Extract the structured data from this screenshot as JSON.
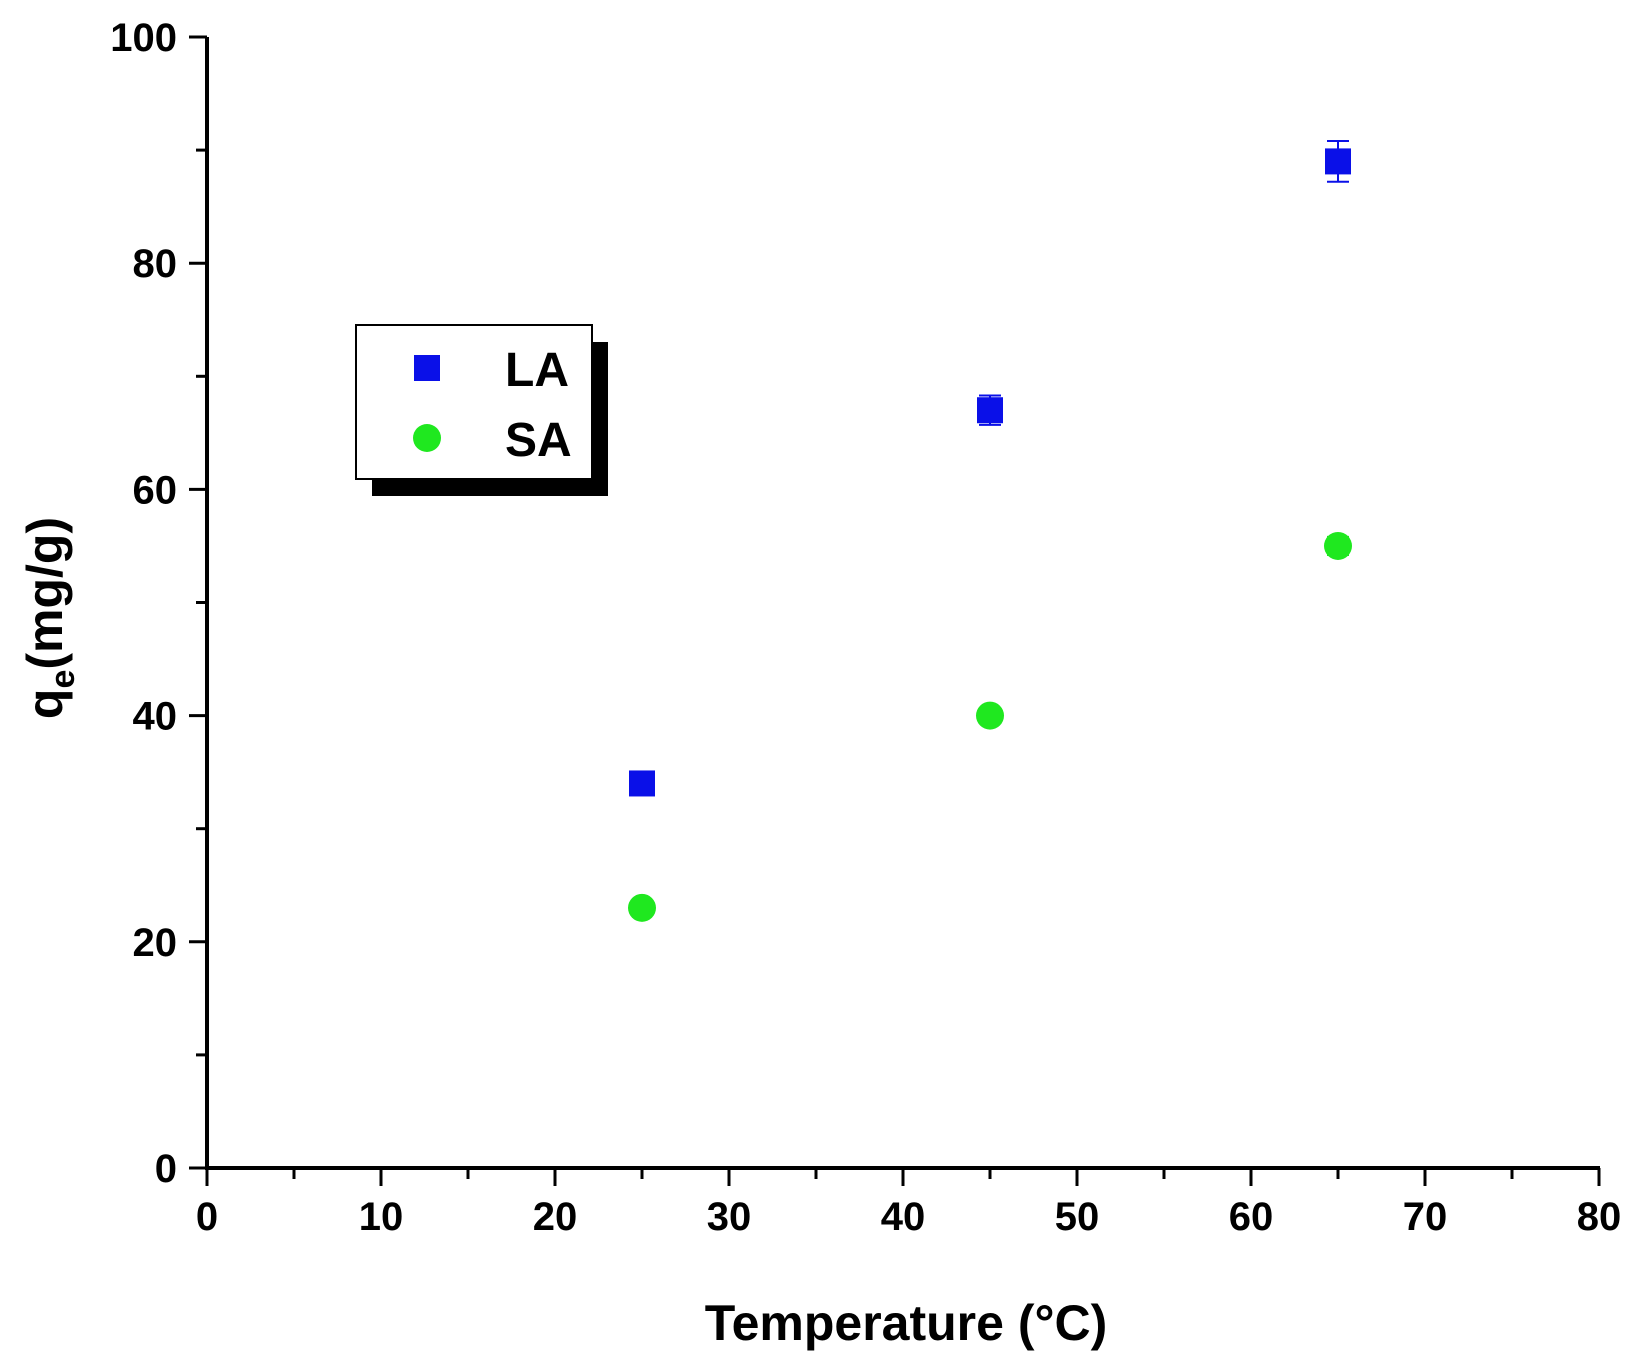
{
  "chart_data": {
    "type": "scatter",
    "title": "",
    "xlabel": "Temperature (°C)",
    "ylabel": {
      "main": "q",
      "sub": "e",
      "unit": "(mg/g)"
    },
    "xlim": [
      0,
      80
    ],
    "ylim": [
      0,
      100
    ],
    "xticks": [
      0,
      10,
      20,
      30,
      40,
      50,
      60,
      70,
      80
    ],
    "yticks": [
      0,
      20,
      40,
      60,
      80,
      100
    ],
    "x_minor_step": 5,
    "y_minor_step": 10,
    "grid": false,
    "legend_position": "upper-left",
    "series": [
      {
        "name": "LA",
        "marker": "square",
        "color": "#0a10e8",
        "x": [
          25,
          45,
          65
        ],
        "y": [
          34,
          67,
          89
        ],
        "error": [
          0.4,
          1.3,
          1.8
        ]
      },
      {
        "name": "SA",
        "marker": "circle",
        "color": "#1fe81f",
        "x": [
          25,
          45,
          65
        ],
        "y": [
          23,
          40,
          55
        ],
        "error": [
          0.3,
          0.4,
          0.8
        ]
      }
    ]
  }
}
